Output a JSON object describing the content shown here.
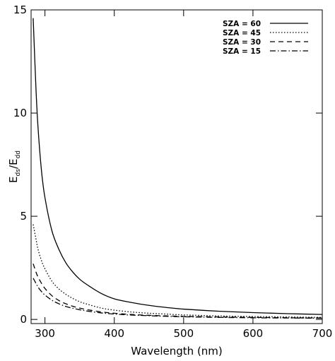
{
  "chart_data": {
    "type": "line",
    "title": "",
    "xlabel": "Wavelength (nm)",
    "ylabel": {
      "main": "E",
      "sub1": "ds",
      "sep": "/",
      "main2": "E",
      "sub2": "dd"
    },
    "xlim": [
      280,
      700
    ],
    "ylim": [
      -0.2,
      15
    ],
    "x_ticks": [
      300,
      400,
      500,
      600,
      700
    ],
    "x_tick_labels": [
      "300",
      "400",
      "500",
      "600",
      "700"
    ],
    "y_ticks": [
      0,
      5,
      10,
      15
    ],
    "y_tick_labels": [
      "0",
      "5",
      "10",
      "15"
    ],
    "grid": false,
    "legend_position": "top-right",
    "x": [
      283,
      287,
      290,
      295,
      300,
      310,
      320,
      330,
      340,
      350,
      360,
      380,
      400,
      425,
      450,
      475,
      500,
      550,
      600,
      650,
      700
    ],
    "series": [
      {
        "name": "SZA = 60",
        "dash": "solid",
        "values": [
          14.6,
          11.2,
          9.3,
          7.2,
          5.9,
          4.3,
          3.4,
          2.75,
          2.3,
          1.95,
          1.7,
          1.28,
          1.0,
          0.82,
          0.68,
          0.58,
          0.5,
          0.4,
          0.33,
          0.28,
          0.24
        ]
      },
      {
        "name": "SZA = 45",
        "dash": "dotted",
        "values": [
          4.6,
          3.9,
          3.4,
          2.85,
          2.45,
          1.85,
          1.48,
          1.22,
          1.02,
          0.86,
          0.75,
          0.56,
          0.45,
          0.36,
          0.3,
          0.26,
          0.22,
          0.17,
          0.14,
          0.12,
          0.1
        ]
      },
      {
        "name": "SZA = 30",
        "dash": "dashed",
        "values": [
          2.7,
          2.3,
          2.05,
          1.75,
          1.5,
          1.15,
          0.92,
          0.76,
          0.64,
          0.55,
          0.48,
          0.37,
          0.3,
          0.24,
          0.2,
          0.17,
          0.15,
          0.12,
          0.1,
          0.08,
          0.07
        ]
      },
      {
        "name": "SZA = 15",
        "dash": "dashdot",
        "values": [
          2.0,
          1.75,
          1.57,
          1.35,
          1.18,
          0.93,
          0.76,
          0.63,
          0.54,
          0.47,
          0.41,
          0.32,
          0.26,
          0.21,
          0.18,
          0.15,
          0.13,
          0.1,
          0.08,
          0.07,
          0.06
        ]
      }
    ]
  }
}
